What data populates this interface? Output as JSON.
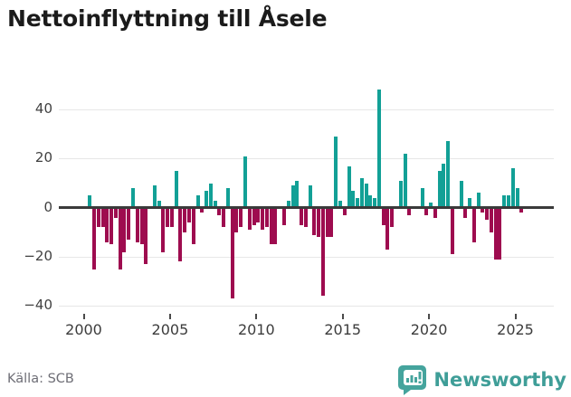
{
  "title": "Nettoinflyttning till Åsele",
  "source": {
    "label": "Källa: SCB"
  },
  "branding": {
    "name": "Newsworthy",
    "icon": "newsworthy-pin-barchart-icon"
  },
  "colors": {
    "positive": "#12a096",
    "negative": "#9e0c4f",
    "grid": "#e7e7e7",
    "zero_line": "#3a3a3a",
    "title_text": "#1b1b1b",
    "axis_text": "#404040",
    "source_text": "#6e6e76",
    "brand": "#3f9e98"
  },
  "chart_data": {
    "type": "bar",
    "title": "Nettoinflyttning till Åsele",
    "xlabel": "",
    "ylabel": "",
    "period": "quarterly",
    "start_year": 2000,
    "start_quarter": 1,
    "end_period": "2025Q2",
    "values": [
      0,
      5,
      -25,
      -8,
      -8,
      -14,
      -15,
      -4,
      -25,
      -18,
      -13,
      8,
      -14,
      -15,
      -23,
      0,
      9,
      3,
      -18,
      -8,
      -8,
      15,
      -22,
      -10,
      -6,
      -15,
      5,
      -2,
      7,
      10,
      3,
      -3,
      -8,
      8,
      -37,
      -10,
      -8,
      21,
      -9,
      -7,
      -6,
      -9,
      -8,
      -15,
      -15,
      0,
      -7,
      3,
      9,
      11,
      -7,
      -8,
      9,
      -11,
      -12,
      -36,
      -12,
      -12,
      29,
      3,
      -3,
      17,
      7,
      4,
      12,
      10,
      5,
      4,
      48,
      -7,
      -17,
      -8,
      0,
      11,
      22,
      -3,
      0,
      0,
      8,
      -3,
      2,
      -4,
      15,
      18,
      27,
      -19,
      0,
      11,
      -4,
      4,
      -14,
      6,
      -2,
      -5,
      -10,
      -21,
      -21,
      5,
      5,
      16,
      8,
      -2
    ],
    "x_ticks": [
      2000,
      2005,
      2010,
      2015,
      2020,
      2025
    ],
    "y_ticks": [
      40,
      20,
      0,
      -20,
      -40
    ],
    "y_tick_labels": [
      "40",
      "20",
      "0",
      "−20",
      "−40"
    ],
    "ylim": [
      -40,
      50
    ],
    "grid": "horizontal",
    "legend": "none"
  }
}
